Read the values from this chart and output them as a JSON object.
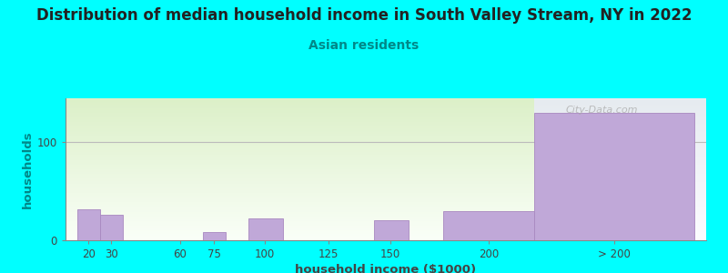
{
  "title": "Distribution of median household income in South Valley Stream, NY in 2022",
  "subtitle": "Asian residents",
  "xlabel": "household income ($1000)",
  "ylabel": "households",
  "background_color": "#00FFFF",
  "bar_color": "#c0a8d8",
  "bar_edge_color": "#a888c0",
  "grid_color": "#bbbbbb",
  "bar_lefts": [
    10,
    20,
    50,
    65,
    85,
    115,
    140,
    170,
    210
  ],
  "bar_rights": [
    20,
    30,
    60,
    75,
    100,
    125,
    155,
    210,
    280
  ],
  "values": [
    32,
    26,
    0,
    8,
    22,
    0,
    20,
    30,
    130
  ],
  "tick_labels": [
    "20",
    "30",
    "60",
    "75",
    "100",
    "125",
    "150",
    "200",
    "> 200"
  ],
  "tick_x": [
    15,
    25,
    55,
    70,
    92,
    120,
    147,
    190,
    245
  ],
  "ylim": [
    0,
    145
  ],
  "xlim": [
    5,
    285
  ],
  "ytick_positions": [
    0,
    100
  ],
  "watermark": "City-Data.com",
  "title_fontsize": 12,
  "subtitle_fontsize": 10,
  "axis_label_fontsize": 9.5,
  "tick_fontsize": 8.5,
  "ylabel_color": "#008888",
  "subtitle_color": "#008888",
  "title_color": "#222222",
  "xlabel_color": "#444444"
}
